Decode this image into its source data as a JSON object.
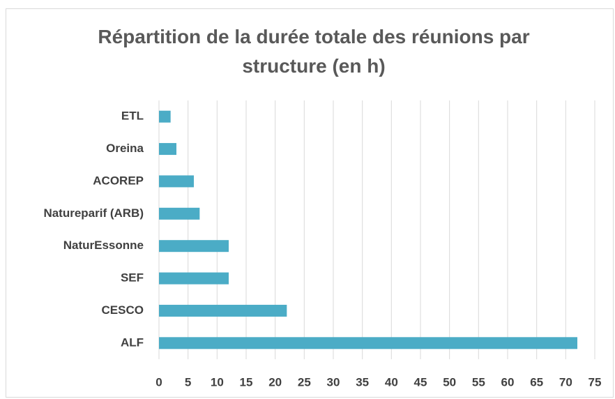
{
  "chart_data": {
    "type": "bar",
    "orientation": "horizontal",
    "title": "Répartition de la durée totale des réunions par structure (en h)",
    "categories": [
      "ETL",
      "Oreina",
      "ACOREP",
      "Natureparif (ARB)",
      "NaturEssonne",
      "SEF",
      "CESCO",
      "ALF"
    ],
    "values": [
      2,
      3,
      6,
      7,
      12,
      12,
      22,
      72
    ],
    "color": "#4bacc6",
    "xlim": [
      0,
      75
    ],
    "xticks": [
      0,
      5,
      10,
      15,
      20,
      25,
      30,
      35,
      40,
      45,
      50,
      55,
      60,
      65,
      70,
      75
    ],
    "grid": true
  }
}
